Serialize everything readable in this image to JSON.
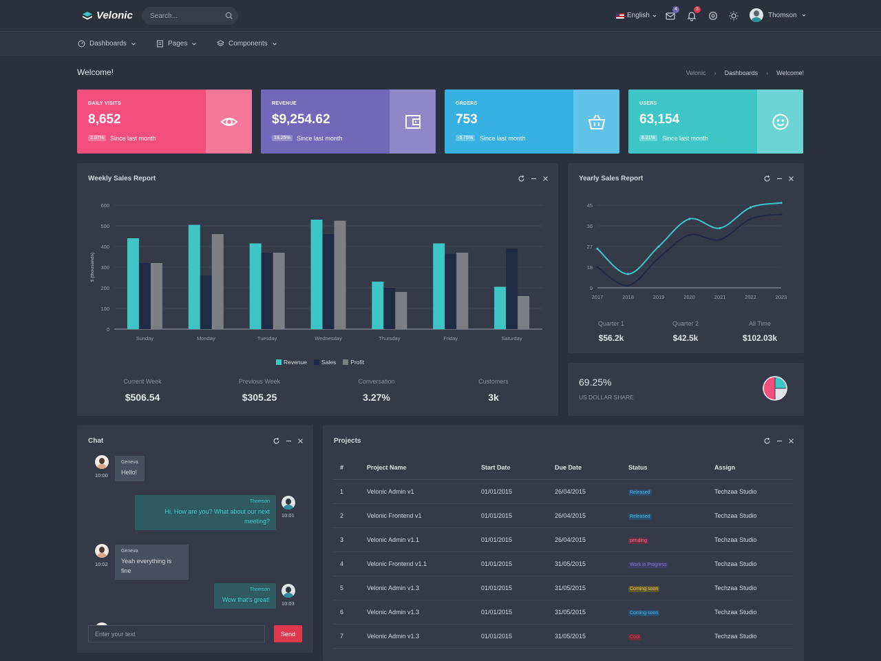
{
  "brand": {
    "name": "Velonic"
  },
  "search": {
    "placeholder": "Search..."
  },
  "topbar": {
    "language": "English",
    "mail_badge": "4",
    "notif_badge": "3",
    "user_name": "Thomson"
  },
  "nav": {
    "items": [
      "Dashboards",
      "Pages",
      "Components"
    ]
  },
  "page": {
    "title": "Welcome!",
    "breadcrumb": [
      "Velonic",
      "Dashboards",
      "Welcome!"
    ]
  },
  "stats": [
    {
      "label": "DAILY VISITS",
      "value": "8,652",
      "change": "2.97%",
      "since": "Since last month",
      "color": "#f24f7c",
      "side_color": "#f5779b",
      "icon": "eye-icon"
    },
    {
      "label": "REVENUE",
      "value": "$9,254.62",
      "change": "18.25%",
      "since": "Since last month",
      "color": "#7267b8",
      "side_color": "#8f87c8",
      "icon": "wallet-icon"
    },
    {
      "label": "ORDERS",
      "value": "753",
      "change": "-5.75%",
      "since": "Since last month",
      "color": "#35b0e0",
      "side_color": "#61c3ea",
      "icon": "basket-icon"
    },
    {
      "label": "USERS",
      "value": "63,154",
      "change": "8.21%",
      "since": "Since last month",
      "color": "#3ec6c6",
      "side_color": "#6cd4d4",
      "icon": "smile-icon"
    }
  ],
  "weekly": {
    "title": "Weekly Sales Report",
    "summary": [
      {
        "label": "Current Week",
        "value": "$506.54"
      },
      {
        "label": "Previous Week",
        "value": "$305.25"
      },
      {
        "label": "Conversation",
        "value": "3.27%"
      },
      {
        "label": "Customers",
        "value": "3k"
      }
    ]
  },
  "yearly": {
    "title": "Yearly Sales Report",
    "summary": [
      {
        "label": "Quarter 1",
        "value": "$56.2k"
      },
      {
        "label": "Quarter 2",
        "value": "$42.5k"
      },
      {
        "label": "All Time",
        "value": "$102.03k"
      }
    ]
  },
  "share": {
    "value": "69.25%",
    "label": "US DOLLAR SHARE"
  },
  "chart_data": [
    {
      "type": "bar",
      "title": "Weekly Sales Report",
      "ylabel": "$ (thousands)",
      "categories": [
        "Sunday",
        "Monday",
        "Tuesday",
        "Wednesday",
        "Thursday",
        "Friday",
        "Saturday"
      ],
      "series": [
        {
          "name": "Revenue",
          "color": "#3ec6c6",
          "values": [
            440,
            505,
            415,
            530,
            230,
            415,
            205
          ]
        },
        {
          "name": "Sales",
          "color": "#1f2a44",
          "values": [
            320,
            260,
            370,
            460,
            200,
            365,
            390
          ]
        },
        {
          "name": "Profit",
          "color": "#7c7f86",
          "values": [
            320,
            460,
            370,
            525,
            180,
            370,
            160
          ]
        }
      ],
      "ylim": [
        0,
        600
      ],
      "yticks": [
        0,
        100,
        200,
        300,
        400,
        500,
        600
      ],
      "grid": true,
      "legend": "bottom"
    },
    {
      "type": "line",
      "title": "Yearly Sales Report",
      "x": [
        "2017",
        "2018",
        "2019",
        "2020",
        "2021",
        "2022",
        "2023"
      ],
      "series": [
        {
          "color": "#3ec6c6",
          "values": [
            26,
            15,
            27,
            39,
            35,
            44,
            46
          ]
        },
        {
          "color": "#1f2a44",
          "values": [
            18,
            10,
            22,
            32,
            30,
            39,
            41
          ]
        }
      ],
      "ylim": [
        9,
        45
      ],
      "yticks": [
        9,
        18,
        27,
        36,
        45
      ],
      "grid": true
    },
    {
      "type": "pie",
      "slices": [
        {
          "value": 25,
          "color": "#3ec6c6"
        },
        {
          "value": 25,
          "color": "#e0e3ea"
        },
        {
          "value": 50,
          "color": "#f24f7c"
        }
      ]
    }
  ],
  "chat": {
    "title": "Chat",
    "messages": [
      {
        "name": "Geneva",
        "text": "Hello!",
        "time": "10:00"
      },
      {
        "name": "Thomson",
        "text": "Hi, How are you? What about our next meeting?",
        "time": "10:01"
      },
      {
        "name": "Geneva",
        "text": "Yeah everything is fine",
        "time": "10:02"
      },
      {
        "name": "Thomson",
        "text": "Wow that's great!",
        "time": "10:03"
      }
    ],
    "placeholder": "Enter your text",
    "send": "Send"
  },
  "projects": {
    "title": "Projects",
    "columns": [
      "#",
      "Project Name",
      "Start Date",
      "Due Date",
      "Status",
      "Assign"
    ],
    "rows": [
      {
        "n": "1",
        "name": "Velonic Admin v1",
        "start": "01/01/2015",
        "due": "26/04/2015",
        "status": "Released",
        "bg": "#2a4f6d",
        "fg": "#4cb5e8",
        "assign": "Techzaa Studio"
      },
      {
        "n": "2",
        "name": "Velonic Frontend v1",
        "start": "01/01/2015",
        "due": "26/04/2015",
        "status": "Released",
        "bg": "#2a4f6d",
        "fg": "#4cb5e8",
        "assign": "Techzaa Studio"
      },
      {
        "n": "3",
        "name": "Velonic Admin v1.1",
        "start": "01/01/2015",
        "due": "26/04/2015",
        "status": "pending",
        "bg": "#6a2f45",
        "fg": "#f26b8c",
        "assign": "Techzaa Studio"
      },
      {
        "n": "4",
        "name": "Velonic Frontend v1.1",
        "start": "01/01/2015",
        "due": "31/05/2015",
        "status": "Work in Progress",
        "bg": "#3d3a63",
        "fg": "#8b84d0",
        "assign": "Techzaa Studio"
      },
      {
        "n": "5",
        "name": "Velonic Admin v1.3",
        "start": "01/01/2015",
        "due": "31/05/2015",
        "status": "Coming soon",
        "bg": "#5c5a2e",
        "fg": "#f4c74a",
        "assign": "Techzaa Studio"
      },
      {
        "n": "6",
        "name": "Velonic Admin v1.3",
        "start": "01/01/2015",
        "due": "31/05/2015",
        "status": "Coming soon",
        "bg": "#2a4f6d",
        "fg": "#4cb5e8",
        "assign": "Techzaa Studio"
      },
      {
        "n": "7",
        "name": "Velonic Admin v1.3",
        "start": "01/01/2015",
        "due": "31/05/2015",
        "status": "Cool",
        "bg": "#6a2f3a",
        "fg": "#e0394d",
        "assign": "Techzaa Studio"
      }
    ]
  }
}
